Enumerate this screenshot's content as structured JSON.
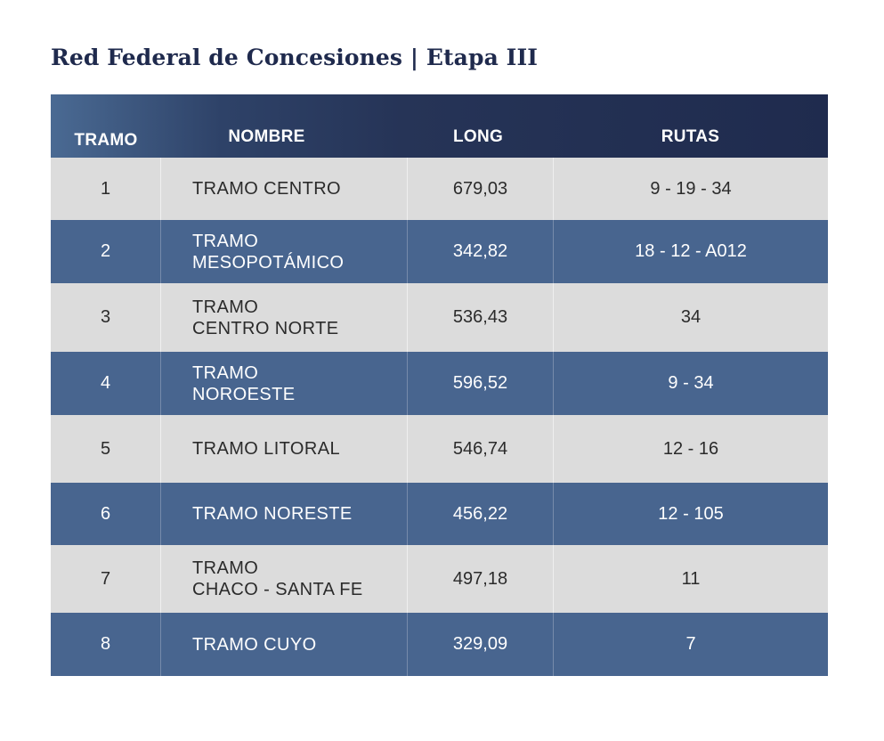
{
  "title": "Red Federal de Concesiones | Etapa III",
  "table": {
    "headers": {
      "tramo": "TRAMO",
      "nombre": "NOMBRE",
      "long": "LONG",
      "rutas": "RUTAS"
    },
    "rows": [
      {
        "num": "1",
        "name_line1": "TRAMO CENTRO",
        "name_line2": "",
        "long": "679,03",
        "rutas": "9 - 19 - 34"
      },
      {
        "num": "2",
        "name_line1": "TRAMO",
        "name_line2": "MESOPOTÁMICO",
        "long": "342,82",
        "rutas": "18 - 12 - A012"
      },
      {
        "num": "3",
        "name_line1": "TRAMO",
        "name_line2": "CENTRO NORTE",
        "long": "536,43",
        "rutas": "34"
      },
      {
        "num": "4",
        "name_line1": "TRAMO",
        "name_line2": "NOROESTE",
        "long": "596,52",
        "rutas": "9 - 34"
      },
      {
        "num": "5",
        "name_line1": "TRAMO LITORAL",
        "name_line2": "",
        "long": "546,74",
        "rutas": "12 - 16"
      },
      {
        "num": "6",
        "name_line1": "TRAMO NORESTE",
        "name_line2": "",
        "long": "456,22",
        "rutas": "12 - 105"
      },
      {
        "num": "7",
        "name_line1": "TRAMO",
        "name_line2": "CHACO - SANTA FE",
        "long": "497,18",
        "rutas": "11"
      },
      {
        "num": "8",
        "name_line1": "TRAMO CUYO",
        "name_line2": "",
        "long": "329,09",
        "rutas": "7"
      }
    ]
  },
  "colors": {
    "title": "#1f2a4d",
    "header_dark": "#1f2b4e",
    "row_dark": "#48658f",
    "row_light": "#dcdcdc"
  }
}
